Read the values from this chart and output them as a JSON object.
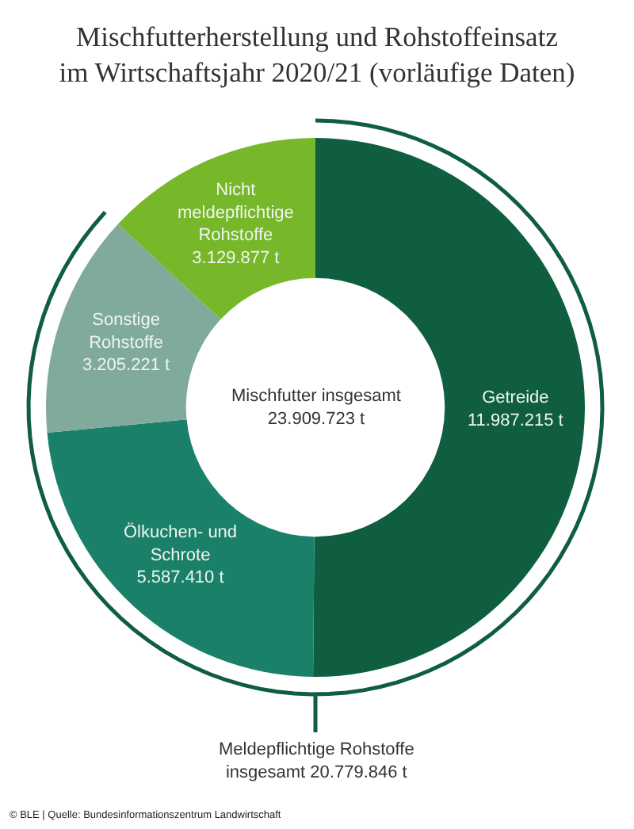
{
  "chart_data": {
    "type": "donut",
    "title": "Mischfutterherstellung und Rohstoffeinsatz im Wirtschaftsjahr 2020/21 (vorläufige Daten)",
    "categories": [
      "Getreide",
      "Ölkuchen- und Schrote",
      "Sonstige Rohstoffe",
      "Nicht meldepflichtige Rohstoffe"
    ],
    "values": [
      11987215,
      5587410,
      3205221,
      3129877
    ],
    "value_labels": [
      "11.987.215 t",
      "5.587.410 t",
      "3.205.221 t",
      "3.129.877 t"
    ],
    "colors": [
      "#0e5e3f",
      "#1a8069",
      "#80ab9c",
      "#76b82a"
    ],
    "annotations": [
      "Mischfutter insgesamt 23.909.723 t",
      "Meldepflichtige Rohstoffe insgesamt 20.779.846 t",
      "© BLE | Quelle: Bundesinformationszentrum Landwirtschaft"
    ]
  }
}
